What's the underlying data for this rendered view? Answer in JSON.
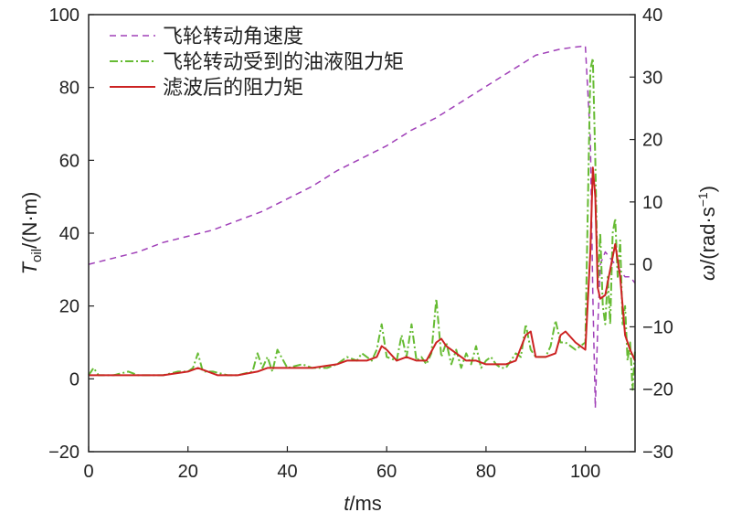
{
  "chart_data": {
    "type": "line",
    "x_axis": {
      "label_prefix": "t",
      "label_suffix": "/ms",
      "range": [
        0,
        110
      ],
      "ticks": [
        0,
        20,
        40,
        60,
        80,
        100
      ]
    },
    "y_left": {
      "label_main": "T",
      "label_sub": "oil",
      "label_suffix": "/(N·m)",
      "range": [
        -20,
        100
      ],
      "ticks": [
        -20,
        0,
        20,
        40,
        60,
        80,
        100
      ]
    },
    "y_right": {
      "label_main": "ω",
      "label_suffix": "/(rad·s",
      "label_sup": "−1",
      "label_close": ")",
      "range": [
        -30,
        40
      ],
      "ticks": [
        -30,
        -20,
        -10,
        0,
        10,
        20,
        30,
        40
      ]
    },
    "legend": {
      "position": "top-left",
      "entries": [
        "飞轮转动角速度",
        "飞轮转动受到的油液阻力矩",
        "滤波后的阻力矩"
      ]
    },
    "series": [
      {
        "name": "飞轮转动角速度",
        "axis": "right",
        "style": "dashed",
        "color": "#a040b8",
        "x": [
          0,
          5,
          10,
          15,
          20,
          25,
          30,
          35,
          40,
          45,
          50,
          55,
          60,
          65,
          70,
          75,
          80,
          85,
          90,
          95,
          100,
          101,
          101.5,
          102,
          102.5,
          103,
          104,
          105,
          106,
          107,
          108,
          109,
          110
        ],
        "y": [
          0,
          1,
          2,
          3.5,
          4.5,
          5.5,
          7,
          8.5,
          10.5,
          12.5,
          15,
          17,
          19,
          21.5,
          23.5,
          26,
          28.5,
          31,
          33.5,
          34.5,
          35,
          20,
          -5,
          -23,
          -10,
          0,
          2,
          1,
          0,
          -1,
          -2,
          -2,
          -3
        ]
      },
      {
        "name": "飞轮转动受到的油液阻力矩",
        "axis": "left",
        "style": "dashdot",
        "color": "#66bb33",
        "x": [
          0,
          1,
          2,
          3,
          5,
          8,
          10,
          12,
          15,
          18,
          20,
          21,
          22,
          23,
          25,
          28,
          30,
          33,
          34,
          35,
          36,
          37,
          38,
          40,
          43,
          45,
          48,
          50,
          52,
          54,
          55,
          57,
          58,
          59,
          60,
          62,
          63,
          64,
          65,
          66,
          67,
          68,
          69,
          70,
          71,
          72,
          73,
          74,
          75,
          76,
          77,
          78,
          79,
          80,
          81,
          82,
          83,
          84,
          85,
          86,
          87,
          88,
          89,
          90,
          91,
          92,
          93,
          94,
          95,
          96,
          98,
          100,
          101,
          101.5,
          102,
          102.5,
          103,
          103.5,
          104,
          104.5,
          105,
          105.5,
          106,
          106.5,
          107,
          107.5,
          108,
          108.5,
          109,
          109.5,
          110
        ],
        "y": [
          1,
          3,
          1,
          1,
          1,
          2,
          1,
          1,
          1,
          2,
          2,
          3,
          7,
          2,
          2,
          1,
          1,
          2,
          7,
          3,
          6,
          2,
          8,
          3,
          4,
          3,
          3,
          4,
          6,
          5,
          7,
          5,
          8,
          15,
          6,
          5,
          12,
          6,
          15,
          5,
          6,
          4,
          7,
          22,
          6,
          10,
          4,
          8,
          3,
          7,
          4,
          9,
          3,
          5,
          6,
          4,
          3,
          3,
          5,
          7,
          6,
          15,
          8,
          6,
          6,
          6,
          9,
          16,
          10,
          10,
          8,
          10,
          85,
          88,
          60,
          25,
          40,
          20,
          15,
          28,
          15,
          40,
          44,
          28,
          38,
          15,
          20,
          5,
          10,
          -3,
          8
        ]
      },
      {
        "name": "滤波后的阻力矩",
        "axis": "left",
        "style": "solid",
        "color": "#cc2222",
        "x": [
          0,
          5,
          10,
          15,
          20,
          22,
          24,
          26,
          30,
          34,
          36,
          40,
          45,
          50,
          52,
          54,
          56,
          58,
          59,
          60,
          62,
          64,
          66,
          68,
          70,
          71,
          72,
          74,
          76,
          78,
          80,
          82,
          84,
          86,
          88,
          89,
          90,
          92,
          94,
          95,
          96,
          98,
          100,
          101,
          101.5,
          102,
          102.5,
          103,
          104,
          105,
          106,
          107,
          108,
          109,
          110
        ],
        "y": [
          1,
          1,
          1,
          1,
          2,
          3,
          2,
          1,
          1,
          2,
          3,
          3,
          3,
          4,
          5,
          5,
          5,
          6,
          9,
          8,
          5,
          6,
          5,
          5,
          10,
          11,
          9,
          7,
          5,
          5,
          4,
          4,
          4,
          5,
          12,
          13,
          6,
          6,
          7,
          12,
          13,
          10,
          8,
          35,
          58,
          50,
          25,
          22,
          23,
          30,
          37,
          28,
          12,
          8,
          5
        ]
      }
    ]
  }
}
